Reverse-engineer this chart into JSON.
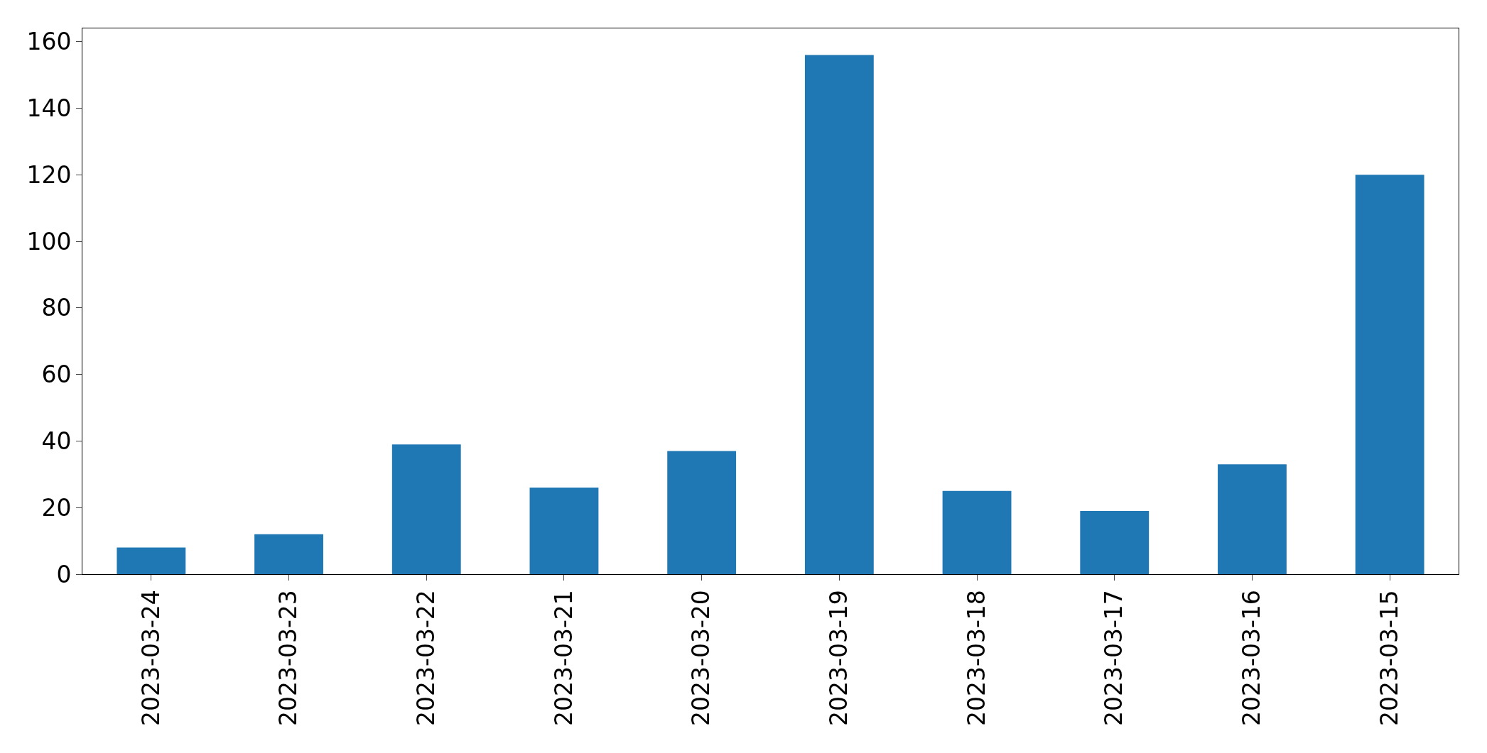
{
  "chart_data": {
    "type": "bar",
    "categories": [
      "2023-03-24",
      "2023-03-23",
      "2023-03-22",
      "2023-03-21",
      "2023-03-20",
      "2023-03-19",
      "2023-03-18",
      "2023-03-17",
      "2023-03-16",
      "2023-03-15"
    ],
    "values": [
      8,
      12,
      39,
      26,
      37,
      156,
      25,
      19,
      33,
      120
    ],
    "color": "#1f77b4",
    "ylim": [
      0,
      164
    ],
    "yticks": [
      0,
      20,
      40,
      60,
      80,
      100,
      120,
      140,
      160
    ]
  }
}
